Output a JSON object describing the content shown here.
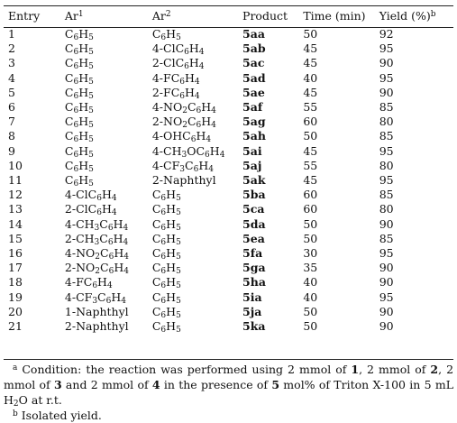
{
  "table": {
    "headers": [
      "Entry",
      "Ar1",
      "Ar2",
      "Product",
      "Time (min)",
      "Yield (%)b"
    ],
    "rows": [
      [
        "1",
        "C6H5",
        "C6H5",
        "5aa",
        "50",
        "92"
      ],
      [
        "2",
        "C6H5",
        "4-ClC6H4",
        "5ab",
        "45",
        "95"
      ],
      [
        "3",
        "C6H5",
        "2-ClC6H4",
        "5ac",
        "45",
        "90"
      ],
      [
        "4",
        "C6H5",
        "4-FC6H4",
        "5ad",
        "40",
        "95"
      ],
      [
        "5",
        "C6H5",
        "2-FC6H4",
        "5ae",
        "45",
        "90"
      ],
      [
        "6",
        "C6H5",
        "4-NO2C6H4",
        "5af",
        "55",
        "85"
      ],
      [
        "7",
        "C6H5",
        "2-NO2C6H4",
        "5ag",
        "60",
        "80"
      ],
      [
        "8",
        "C6H5",
        "4-OHC6H4",
        "5ah",
        "50",
        "85"
      ],
      [
        "9",
        "C6H5",
        "4-CH3OC6H4",
        "5ai",
        "45",
        "95"
      ],
      [
        "10",
        "C6H5",
        "4-CF3C6H4",
        "5aj",
        "55",
        "80"
      ],
      [
        "11",
        "C6H5",
        "2-Naphthyl",
        "5ak",
        "45",
        "95"
      ],
      [
        "12",
        "4-ClC6H4",
        "C6H5",
        "5ba",
        "60",
        "85"
      ],
      [
        "13",
        "2-ClC6H4",
        "C6H5",
        "5ca",
        "60",
        "80"
      ],
      [
        "14",
        "4-CH3C6H4",
        "C6H5",
        "5da",
        "50",
        "90"
      ],
      [
        "15",
        "2-CH3C6H4",
        "C6H5",
        "5ea",
        "50",
        "85"
      ],
      [
        "16",
        "4-NO2C6H4",
        "C6H5",
        "5fa",
        "30",
        "95"
      ],
      [
        "17",
        "2-NO2C6H4",
        "C6H5",
        "5ga",
        "35",
        "90"
      ],
      [
        "18",
        "4-FC6H4",
        "C6H5",
        "5ha",
        "40",
        "90"
      ],
      [
        "19",
        "4-CF3C6H4",
        "C6H5",
        "5ia",
        "40",
        "95"
      ],
      [
        "20",
        "1-Naphthyl",
        "C6H5",
        "5ja",
        "50",
        "90"
      ],
      [
        "21",
        "2-Naphthyl",
        "C6H5",
        "5ka",
        "50",
        "90"
      ]
    ]
  },
  "footnotes": {
    "a": "a Condition: the reaction was performed using 2 mmol of 1, 2 mmol of 2, 2 mmol of 3 and 2 mmol of 4 in the presence of 5 mol% of Triton X-100 in 5 mL H2O at r.t.",
    "b": "b Isolated yield."
  }
}
